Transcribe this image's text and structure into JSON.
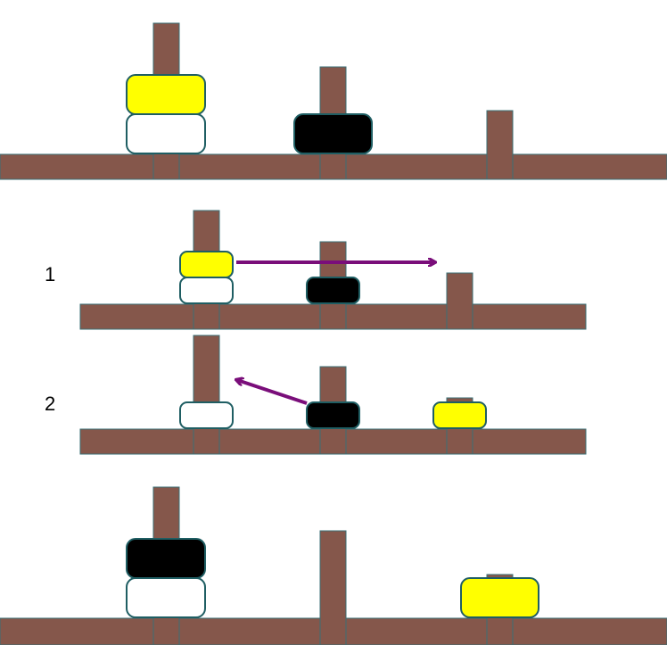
{
  "colors": {
    "wood": "#85574b",
    "wood_line": "#3a6f74",
    "disk_outline": "#1f5e63",
    "yellow": "#ffff00",
    "white": "#ffffff",
    "black": "#000000",
    "arrow": "#7a0e7a"
  },
  "steps": {
    "step1_label": "1",
    "step2_label": "2"
  },
  "panels": [
    {
      "name": "initial-state",
      "pegs": [
        {
          "disks": [
            "white",
            "yellow"
          ]
        },
        {
          "disks": [
            "black"
          ]
        },
        {
          "disks": []
        }
      ]
    },
    {
      "name": "step-1",
      "pegs": [
        {
          "disks": [
            "white",
            "yellow"
          ]
        },
        {
          "disks": [
            "black"
          ]
        },
        {
          "disks": []
        }
      ],
      "move": {
        "from_peg": 1,
        "to_peg": 3,
        "disk": "yellow"
      }
    },
    {
      "name": "step-2",
      "pegs": [
        {
          "disks": [
            "white"
          ]
        },
        {
          "disks": [
            "black"
          ]
        },
        {
          "disks": [
            "yellow"
          ]
        }
      ],
      "move": {
        "from_peg": 2,
        "to_peg": 1,
        "disk": "black"
      }
    },
    {
      "name": "final-state",
      "pegs": [
        {
          "disks": [
            "white",
            "black"
          ]
        },
        {
          "disks": []
        },
        {
          "disks": [
            "yellow"
          ]
        }
      ]
    }
  ]
}
